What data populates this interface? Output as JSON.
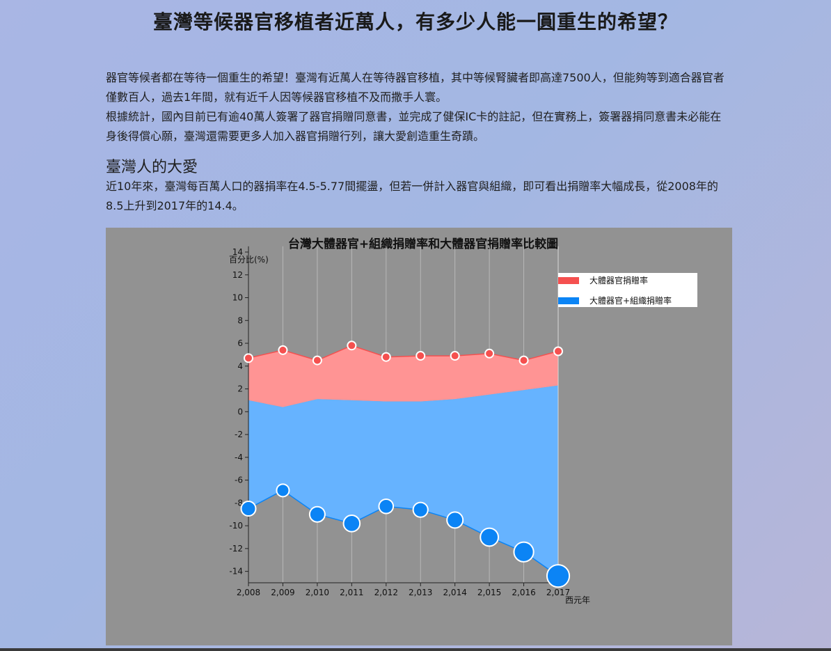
{
  "page": {
    "title": "臺灣等候器官移植者近萬人，有多少人能一圓重生的希望？",
    "intro_paragraphs": [
      "器官等候者都在等待一個重生的希望！臺灣有近萬人在等待器官移植，其中等候腎臟者即高達7500人，但能夠等到適合器官者僅數百人，過去1年間，就有近千人因等候器官移植不及而撒手人寰。",
      "根據統計，國內目前已有逾40萬人簽署了器官捐贈同意書，並完成了健保IC卡的註記，但在實務上，簽署器捐同意書未必能在身後得償心願，臺灣還需要更多人加入器官捐贈行列，讓大愛創造重生奇蹟。"
    ],
    "section_heading": "臺灣人的大愛",
    "section_text": "近10年來，臺灣每百萬人口的器捐率在4.5-5.77間擺盪，但若一併計入器官與組織，即可看出捐贈率大幅成長，從2008年的8.5上升到2017年的14.4。"
  },
  "chart_data": {
    "type": "area",
    "title": "台灣大體器官+組織捐贈率和大體器官捐贈率比較圖",
    "ylabel": "百分比(%)",
    "xlabel": "西元年",
    "x": [
      "2,008",
      "2,009",
      "2,010",
      "2,011",
      "2,012",
      "2,013",
      "2,014",
      "2,015",
      "2,016",
      "2,017"
    ],
    "ylim": [
      -15,
      14
    ],
    "yticks": [
      14,
      12,
      10,
      8,
      6,
      4,
      2,
      0,
      -2,
      -4,
      -6,
      -8,
      -10,
      -12,
      -14
    ],
    "grid": "vertical",
    "legend_position": "top-right",
    "series": [
      {
        "name": "大體器官捐贈率",
        "color": "#f5504f",
        "fill": "#ff9494",
        "values": [
          4.7,
          5.4,
          4.5,
          5.8,
          4.8,
          4.9,
          4.9,
          5.1,
          4.5,
          5.3
        ]
      },
      {
        "name": "大體器官+組織捐贈率",
        "color": "#0b84f5",
        "fill": "#66b3ff",
        "values": [
          -8.5,
          -6.9,
          -9.0,
          -9.8,
          -8.3,
          -8.6,
          -9.5,
          -11.0,
          -12.3,
          -14.4
        ],
        "upper_boundary": [
          1.0,
          0.4,
          1.1,
          1.0,
          0.9,
          0.9,
          1.1,
          1.5,
          1.9,
          2.3
        ]
      }
    ]
  }
}
